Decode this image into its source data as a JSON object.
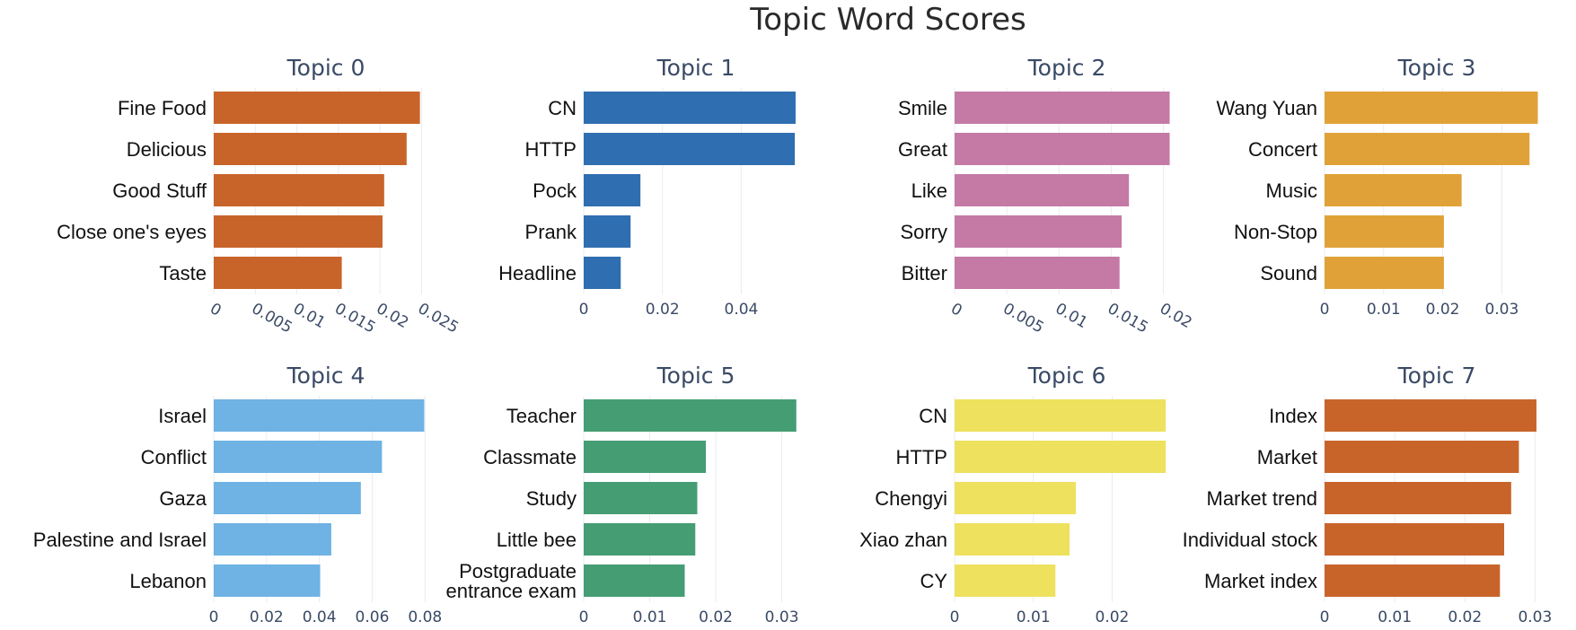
{
  "title": "Topic Word Scores",
  "chart_data": [
    {
      "type": "bar",
      "orientation": "horizontal",
      "title": "Topic 0",
      "color": "#c8642a",
      "categories": [
        "Fine Food",
        "Delicious",
        "Good Stuff",
        "Close one's eyes",
        "Taste"
      ],
      "values": [
        0.0248,
        0.0232,
        0.0205,
        0.0203,
        0.0154
      ],
      "xlim": [
        0,
        0.027
      ],
      "xticks": [
        "0",
        "0.005",
        "0.01",
        "0.015",
        "0.02",
        "0.025"
      ],
      "tick_angle": 30,
      "grid": true
    },
    {
      "type": "bar",
      "orientation": "horizontal",
      "title": "Topic 1",
      "color": "#2f6eb0",
      "categories": [
        "CN",
        "HTTP",
        "Pock",
        "Prank",
        "Headline"
      ],
      "values": [
        0.0538,
        0.0536,
        0.0144,
        0.0119,
        0.0094
      ],
      "xlim": [
        0,
        0.057
      ],
      "xticks": [
        "0",
        "0.02",
        "0.04"
      ],
      "tick_angle": 0,
      "grid": true
    },
    {
      "type": "bar",
      "orientation": "horizontal",
      "title": "Topic 2",
      "color": "#c47aa5",
      "categories": [
        "Smile",
        "Great",
        "Like",
        "Sorry",
        "Bitter"
      ],
      "values": [
        0.0206,
        0.0206,
        0.0167,
        0.016,
        0.0158
      ],
      "xlim": [
        0,
        0.0215
      ],
      "xticks": [
        "0",
        "0.005",
        "0.01",
        "0.015",
        "0.02"
      ],
      "tick_angle": 30,
      "grid": true
    },
    {
      "type": "bar",
      "orientation": "horizontal",
      "title": "Topic 3",
      "color": "#e0a238",
      "categories": [
        "Wang Yuan",
        "Concert",
        "Music",
        "Non-Stop",
        "Sound"
      ],
      "values": [
        0.0361,
        0.0347,
        0.0232,
        0.0202,
        0.0202
      ],
      "xlim": [
        0,
        0.038
      ],
      "xticks": [
        "0",
        "0.01",
        "0.02",
        "0.03"
      ],
      "tick_angle": 0,
      "grid": true
    },
    {
      "type": "bar",
      "orientation": "horizontal",
      "title": "Topic 4",
      "color": "#6eb3e4",
      "categories": [
        "Israel",
        "Conflict",
        "Gaza",
        "Palestine and Israel",
        "Lebanon"
      ],
      "values": [
        0.0797,
        0.0637,
        0.0557,
        0.0445,
        0.0403
      ],
      "xlim": [
        0,
        0.085
      ],
      "xticks": [
        "0",
        "0.02",
        "0.04",
        "0.06",
        "0.08"
      ],
      "tick_angle": 0,
      "grid": true
    },
    {
      "type": "bar",
      "orientation": "horizontal",
      "title": "Topic 5",
      "color": "#459d74",
      "categories": [
        "Teacher",
        "Classmate",
        "Study",
        "Little bee",
        "Postgraduate entrance exam"
      ],
      "values": [
        0.0322,
        0.0185,
        0.0172,
        0.0169,
        0.0153
      ],
      "xlim": [
        0,
        0.034
      ],
      "xticks": [
        "0",
        "0.01",
        "0.02",
        "0.03"
      ],
      "tick_angle": 0,
      "grid": true
    },
    {
      "type": "bar",
      "orientation": "horizontal",
      "title": "Topic 6",
      "color": "#ede15e",
      "categories": [
        "CN",
        "HTTP",
        "Chengyi",
        "Xiao zhan",
        "CY"
      ],
      "values": [
        0.0268,
        0.0268,
        0.0154,
        0.0146,
        0.0128
      ],
      "xlim": [
        0,
        0.0285
      ],
      "xticks": [
        "0",
        "0.01",
        "0.02"
      ],
      "tick_angle": 0,
      "grid": true
    },
    {
      "type": "bar",
      "orientation": "horizontal",
      "title": "Topic 7",
      "color": "#c8642a",
      "categories": [
        "Index",
        "Market",
        "Market trend",
        "Individual stock",
        "Market index"
      ],
      "values": [
        0.0302,
        0.0277,
        0.0266,
        0.0256,
        0.025
      ],
      "xlim": [
        0,
        0.032
      ],
      "xticks": [
        "0",
        "0.01",
        "0.02",
        "0.03"
      ],
      "tick_angle": 0,
      "grid": true
    }
  ]
}
